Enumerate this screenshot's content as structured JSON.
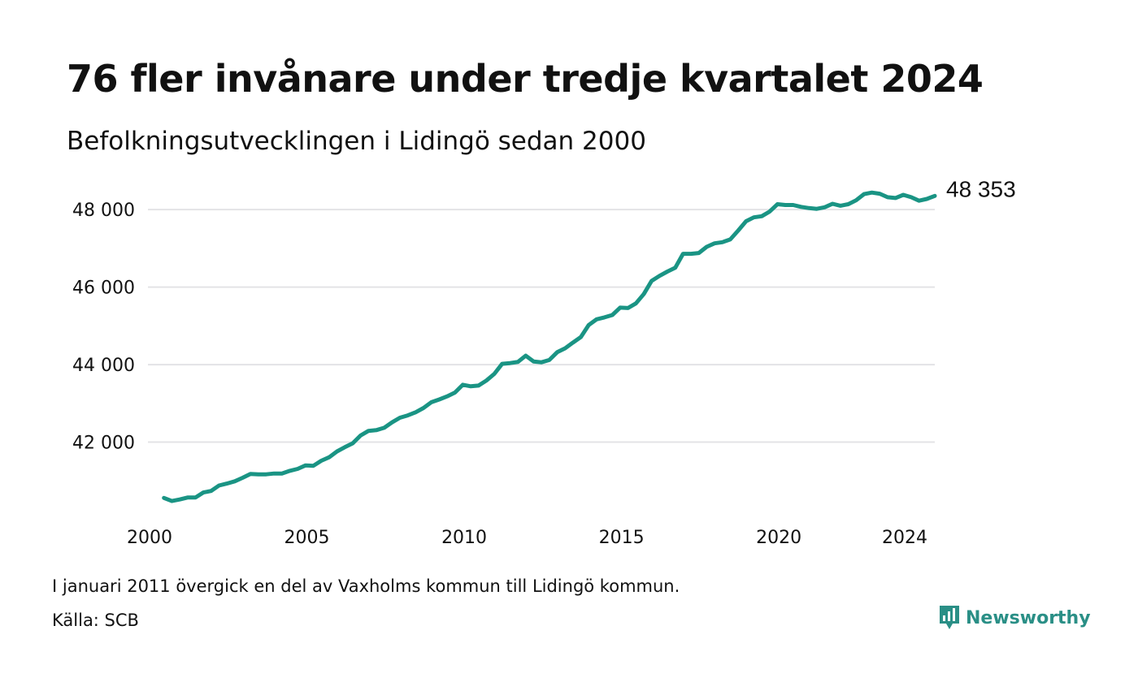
{
  "title": "76 fler invånare under tredje kvartalet 2024",
  "subtitle": "Befolkningsutvecklingen i Lidingö sedan 2000",
  "footnote": "I januari 2011 övergick en del av Vaxholms kommun till Lidingö kommun.",
  "source": "Källa: SCB",
  "brand": {
    "name": "Newsworthy",
    "icon": "newsworthy-logo-icon",
    "color": "#2a8f86"
  },
  "colors": {
    "line": "#1a9484",
    "grid": "#e3e3e6",
    "text": "#111111"
  },
  "chart_data": {
    "type": "line",
    "title": "76 fler invånare under tredje kvartalet 2024",
    "subtitle": "Befolkningsutvecklingen i Lidingö sedan 2000",
    "ylim": [
      40000,
      48800
    ],
    "xlim": [
      2000,
      2024.75
    ],
    "y_ticks": [
      {
        "value": 42000,
        "label": "42 000"
      },
      {
        "value": 44000,
        "label": "44 000"
      },
      {
        "value": 46000,
        "label": "46 000"
      },
      {
        "value": 48000,
        "label": "48 000"
      }
    ],
    "x_ticks": [
      {
        "value": 2000,
        "label": "2000"
      },
      {
        "value": 2005,
        "label": "2005"
      },
      {
        "value": 2010,
        "label": "2010"
      },
      {
        "value": 2015,
        "label": "2015"
      },
      {
        "value": 2020,
        "label": "2020"
      },
      {
        "value": 2024,
        "label": "2024"
      }
    ],
    "grid": true,
    "end_label": "48 353",
    "series": [
      {
        "x_start": 2000.25,
        "x_step": 0.25,
        "values": [
          40560,
          40480,
          40520,
          40570,
          40570,
          40700,
          40740,
          40880,
          40930,
          40990,
          41080,
          41180,
          41170,
          41170,
          41190,
          41190,
          41260,
          41310,
          41400,
          41390,
          41520,
          41610,
          41760,
          41870,
          41970,
          42170,
          42290,
          42310,
          42370,
          42510,
          42630,
          42690,
          42770,
          42880,
          43030,
          43100,
          43180,
          43280,
          43480,
          43440,
          43460,
          43590,
          43760,
          44020,
          44040,
          44070,
          44230,
          44080,
          44060,
          44120,
          44320,
          44420,
          44570,
          44710,
          45020,
          45170,
          45220,
          45280,
          45470,
          45460,
          45580,
          45820,
          46160,
          46290,
          46400,
          46500,
          46860,
          46860,
          46880,
          47040,
          47130,
          47160,
          47230,
          47460,
          47700,
          47800,
          47830,
          47950,
          48140,
          48120,
          48120,
          48070,
          48040,
          48020,
          48060,
          48150,
          48100,
          48140,
          48240,
          48400,
          48440,
          48410,
          48320,
          48300,
          48380,
          48320,
          48230,
          48277,
          48353
        ]
      }
    ]
  }
}
